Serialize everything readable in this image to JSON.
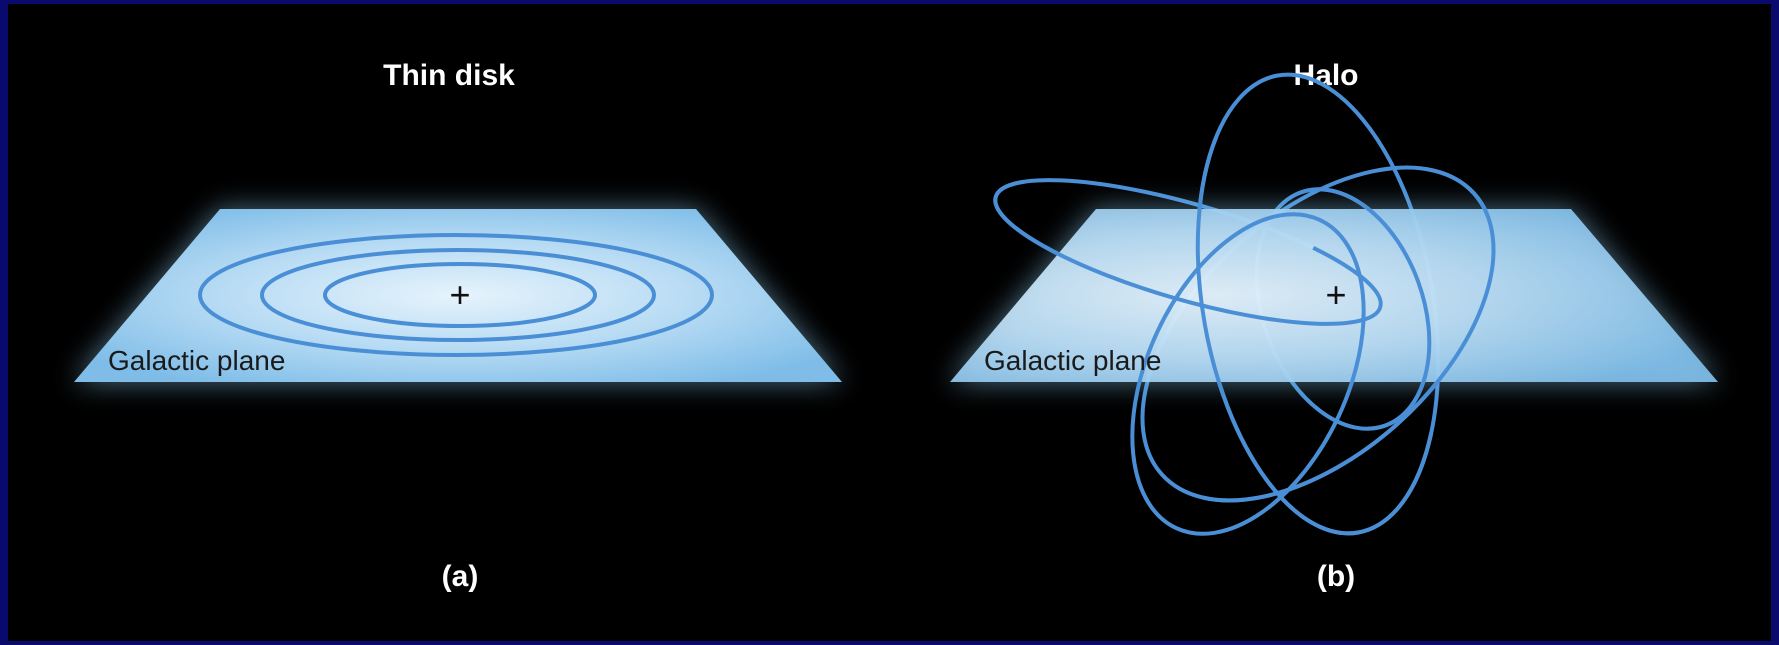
{
  "panels": [
    {
      "title": "Thin disk",
      "plane_label": "Galactic plane",
      "center_mark": "+",
      "caption": "(a)"
    },
    {
      "title": "Halo",
      "plane_label": "Galactic plane",
      "center_mark": "+",
      "caption": "(b)"
    }
  ],
  "colors": {
    "background": "#000000",
    "border": "#0a0a6e",
    "plane": "#a7d3f2",
    "orbit": "#4a8fd6",
    "text": "#ffffff"
  }
}
